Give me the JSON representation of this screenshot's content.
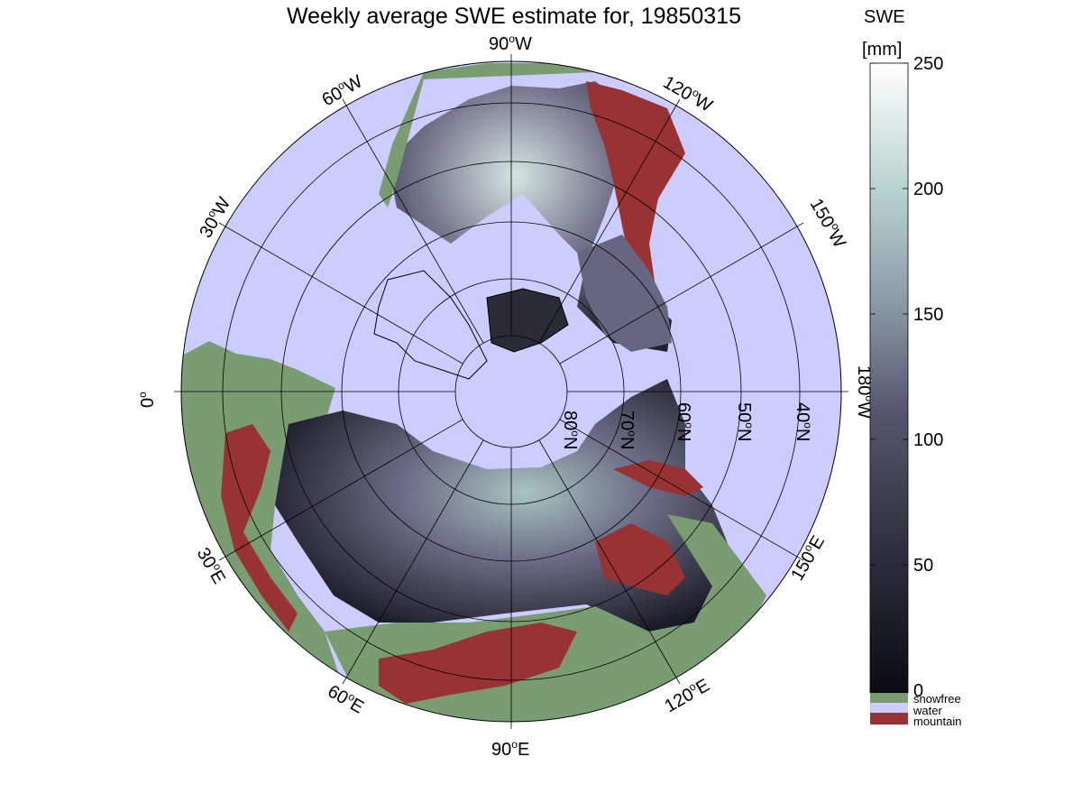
{
  "title": "Weekly average SWE estimate for, 19850315",
  "colorbar": {
    "label_line1": "SWE",
    "label_line2": "[mm]",
    "ticks": [
      "0",
      "50",
      "100",
      "150",
      "200",
      "250"
    ],
    "tick_values": [
      0,
      50,
      100,
      150,
      200,
      250
    ],
    "range": [
      0,
      250
    ],
    "gradient": [
      "#0b0b12",
      "#2a2a3a",
      "#575770",
      "#8a9aa8",
      "#b9d3d0",
      "#ffffff"
    ]
  },
  "legend": [
    {
      "label": "snowfree",
      "color": "#7a9c72"
    },
    {
      "label": "water",
      "color": "#ccccff"
    },
    {
      "label": "mountain",
      "color": "#993333"
    }
  ],
  "map": {
    "projection": "north polar stereographic",
    "ocean_color": "#ccccff",
    "land_snowfree_color": "#7a9c72",
    "mountain_color": "#993333",
    "longitude_labels": [
      {
        "deg": "90",
        "hem": "W"
      },
      {
        "deg": "120",
        "hem": "W"
      },
      {
        "deg": "150",
        "hem": "W"
      },
      {
        "deg": "180",
        "hem": "W"
      },
      {
        "deg": "150",
        "hem": "E"
      },
      {
        "deg": "120",
        "hem": "E"
      },
      {
        "deg": "90",
        "hem": "E"
      },
      {
        "deg": "60",
        "hem": "E"
      },
      {
        "deg": "30",
        "hem": "E"
      },
      {
        "deg": "0",
        "hem": ""
      },
      {
        "deg": "30",
        "hem": "W"
      },
      {
        "deg": "60",
        "hem": "W"
      }
    ],
    "latitude_labels": [
      {
        "deg": "80",
        "hem": "N"
      },
      {
        "deg": "70",
        "hem": "N"
      },
      {
        "deg": "60",
        "hem": "N"
      },
      {
        "deg": "50",
        "hem": "N"
      },
      {
        "deg": "40",
        "hem": "N"
      }
    ]
  }
}
